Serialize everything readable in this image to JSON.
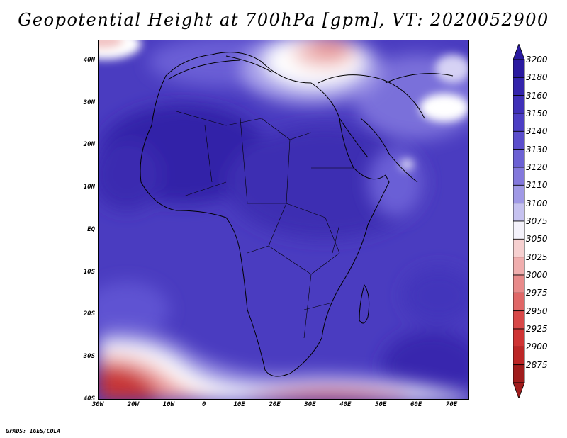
{
  "title": "Geopotential Height at 700hPa [gpm], VT: 2020052900",
  "credit": "GrADS: IGES/COLA",
  "map": {
    "lon_range": [
      -30,
      75
    ],
    "lat_range": [
      -40,
      45
    ],
    "y_ticks": [
      {
        "label": "40N",
        "lat": 40
      },
      {
        "label": "30N",
        "lat": 30
      },
      {
        "label": "20N",
        "lat": 20
      },
      {
        "label": "10N",
        "lat": 10
      },
      {
        "label": "EQ",
        "lat": 0
      },
      {
        "label": "10S",
        "lat": -10
      },
      {
        "label": "20S",
        "lat": -20
      },
      {
        "label": "30S",
        "lat": -30
      },
      {
        "label": "40S",
        "lat": -40
      }
    ],
    "x_ticks": [
      {
        "label": "30W",
        "lon": -30
      },
      {
        "label": "20W",
        "lon": -20
      },
      {
        "label": "10W",
        "lon": -10
      },
      {
        "label": "0",
        "lon": 0
      },
      {
        "label": "10E",
        "lon": 10
      },
      {
        "label": "20E",
        "lon": 20
      },
      {
        "label": "30E",
        "lon": 30
      },
      {
        "label": "40E",
        "lon": 40
      },
      {
        "label": "50E",
        "lon": 50
      },
      {
        "label": "60E",
        "lon": 60
      },
      {
        "label": "70E",
        "lon": 70
      }
    ]
  },
  "colorbar": {
    "levels": [
      "3200",
      "3180",
      "3160",
      "3150",
      "3140",
      "3130",
      "3120",
      "3110",
      "3100",
      "3075",
      "3050",
      "3025",
      "3000",
      "2975",
      "2950",
      "2925",
      "2900",
      "2875"
    ],
    "colors": [
      "#2a1aa0",
      "#3324ac",
      "#3f30b8",
      "#4c3ec4",
      "#5b4ecc",
      "#6c61d4",
      "#8378dc",
      "#a099e6",
      "#c6c2f0",
      "#f4f2fb",
      "#f6d0d0",
      "#f0aeae",
      "#e88a8a",
      "#e06767",
      "#d84848",
      "#cf3434",
      "#bc2626",
      "#a01c1c"
    ]
  },
  "field": {
    "background": "#5544c8",
    "high_core_color": "#2a1aa0",
    "low_color_strong": "#b82424",
    "low_color_mid": "#e27a7a",
    "transition_color": "#ffffff"
  }
}
